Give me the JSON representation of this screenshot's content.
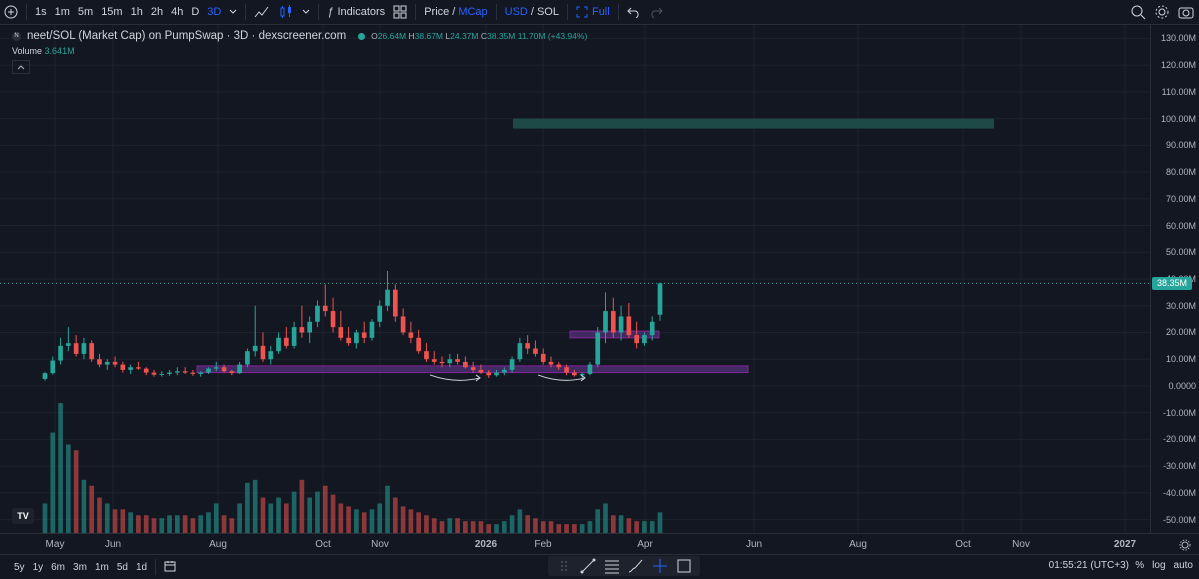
{
  "toolbar": {
    "intervals": [
      "1s",
      "1m",
      "5m",
      "15m",
      "1h",
      "2h",
      "4h",
      "D",
      "3D"
    ],
    "active_interval": "3D",
    "indicators_label": "Indicators",
    "price_label": "Price",
    "slash": "/",
    "mcap_label": "MCap",
    "usd_label": "USD",
    "sol_label": "SOL",
    "full_label": "Full"
  },
  "legend": {
    "title": "neet/SOL (Market Cap) on PumpSwap · 3D · dexscreener.com",
    "o_key": "O",
    "o_val": "26.64M",
    "h_key": "H",
    "h_val": "38.67M",
    "l_key": "L",
    "l_val": "24.37M",
    "c_key": "C",
    "c_val": "38.35M",
    "change": "11.70M (+43.94%)",
    "volume_label": "Volume",
    "volume_value": "3.641M"
  },
  "price_tag": "38.35M",
  "price_axis": [
    "130.00M",
    "120.00M",
    "110.00M",
    "100.00M",
    "90.00M",
    "80.00M",
    "70.00M",
    "60.00M",
    "50.00M",
    "40.00M",
    "30.00M",
    "20.00M",
    "10.00M",
    "0.0000",
    "-10.00M",
    "-20.00M",
    "-30.00M",
    "-40.00M",
    "-50.00M"
  ],
  "time_axis": [
    "May",
    "Jun",
    "Aug",
    "Oct",
    "Nov",
    "2026",
    "Feb",
    "Apr",
    "Jun",
    "Aug",
    "Oct",
    "Nov",
    "2027"
  ],
  "bottom": {
    "ranges": [
      "5y",
      "1y",
      "6m",
      "3m",
      "1m",
      "5d",
      "1d"
    ],
    "clock": "01:55:21 (UTC+3)",
    "pct": "%",
    "log": "log",
    "auto": "auto"
  },
  "colors": {
    "up": "#26a69a",
    "down": "#ef5350",
    "accent": "#2962ff",
    "zone": "#7e57c2"
  },
  "chart_data": {
    "type": "candlestick",
    "ylim": [
      -55,
      135
    ],
    "unit": "M",
    "candles": [
      [
        2.6,
        5.2,
        2.0,
        4.8
      ],
      [
        4.8,
        11,
        4.2,
        9.5
      ],
      [
        9.5,
        18,
        8,
        15
      ],
      [
        15,
        22,
        13,
        16
      ],
      [
        16,
        19,
        11,
        12
      ],
      [
        12,
        18,
        10,
        16
      ],
      [
        16,
        17,
        9,
        10
      ],
      [
        10,
        12,
        7,
        8
      ],
      [
        8,
        10,
        6,
        9
      ],
      [
        9,
        11,
        7,
        8
      ],
      [
        8,
        9,
        5,
        6
      ],
      [
        6,
        8,
        4.5,
        7
      ],
      [
        7,
        9,
        6,
        6.5
      ],
      [
        6.5,
        7,
        4,
        5
      ],
      [
        5,
        6,
        3.5,
        4.2
      ],
      [
        4.2,
        5.5,
        3.5,
        4.5
      ],
      [
        4.5,
        6,
        3.8,
        5
      ],
      [
        5,
        7,
        4,
        5.5
      ],
      [
        5.5,
        7,
        4.5,
        5
      ],
      [
        5,
        6,
        3.8,
        4.5
      ],
      [
        4.5,
        5.5,
        3.5,
        5
      ],
      [
        5,
        7,
        4.5,
        6.5
      ],
      [
        6.5,
        9,
        5.5,
        7
      ],
      [
        7,
        8,
        5,
        5.5
      ],
      [
        5.5,
        6,
        4,
        4.8
      ],
      [
        4.8,
        9,
        4.5,
        8
      ],
      [
        8,
        14,
        7,
        13
      ],
      [
        13,
        30,
        11,
        15
      ],
      [
        15,
        20,
        9,
        10
      ],
      [
        10,
        15,
        8,
        13
      ],
      [
        13,
        20,
        12,
        18
      ],
      [
        18,
        22,
        14,
        15
      ],
      [
        15,
        24,
        14,
        22
      ],
      [
        22,
        30,
        18,
        20
      ],
      [
        20,
        26,
        16,
        24
      ],
      [
        24,
        32,
        22,
        30
      ],
      [
        30,
        38,
        26,
        28
      ],
      [
        28,
        33,
        20,
        22
      ],
      [
        22,
        28,
        17,
        18
      ],
      [
        18,
        22,
        15,
        16
      ],
      [
        16,
        21,
        14,
        20
      ],
      [
        20,
        24,
        16,
        18
      ],
      [
        18,
        25,
        17,
        24
      ],
      [
        24,
        32,
        22,
        30
      ],
      [
        30,
        43,
        28,
        36
      ],
      [
        36,
        38,
        24,
        26
      ],
      [
        26,
        29,
        19,
        20
      ],
      [
        20,
        24,
        16,
        18
      ],
      [
        18,
        21,
        12,
        13
      ],
      [
        13,
        16,
        9,
        10
      ],
      [
        10,
        13,
        8,
        9
      ],
      [
        9,
        11,
        7,
        8.5
      ],
      [
        8.5,
        12,
        7,
        10
      ],
      [
        10,
        12,
        8,
        9
      ],
      [
        9,
        11,
        6.5,
        7
      ],
      [
        7,
        9,
        5,
        6
      ],
      [
        6,
        8,
        4.5,
        5
      ],
      [
        5,
        6,
        3,
        4
      ],
      [
        4,
        6,
        3.5,
        5
      ],
      [
        5,
        7,
        4,
        6
      ],
      [
        6,
        11,
        5,
        10
      ],
      [
        10,
        18,
        9,
        16
      ],
      [
        16,
        19,
        12,
        14
      ],
      [
        14,
        17,
        11,
        12
      ],
      [
        12,
        14,
        8,
        9
      ],
      [
        9,
        11,
        7,
        8
      ],
      [
        8,
        9,
        6,
        7
      ],
      [
        7,
        8,
        4,
        5
      ],
      [
        5,
        6,
        3.5,
        4
      ],
      [
        4,
        5,
        3,
        4.5
      ],
      [
        4.5,
        9,
        4,
        8
      ],
      [
        8,
        22,
        7,
        20
      ],
      [
        20,
        35,
        16,
        28
      ],
      [
        28,
        33,
        18,
        20
      ],
      [
        20,
        30,
        17,
        26
      ],
      [
        26,
        31,
        18,
        19
      ],
      [
        19,
        24,
        14,
        16
      ],
      [
        16,
        20,
        15,
        19
      ],
      [
        19,
        26,
        17,
        24
      ],
      [
        26.64,
        38.67,
        24.37,
        38.35
      ]
    ],
    "volume": [
      10,
      34,
      44,
      30,
      28,
      18,
      16,
      12,
      10,
      8,
      8,
      7,
      6,
      6,
      5,
      5,
      6,
      6,
      6,
      5,
      6,
      7,
      10,
      6,
      5,
      10,
      17,
      18,
      12,
      10,
      12,
      10,
      14,
      18,
      12,
      14,
      16,
      13,
      10,
      9,
      8,
      7,
      8,
      10,
      16,
      12,
      9,
      8,
      7,
      6,
      5,
      4,
      5,
      5,
      4,
      4,
      4,
      3,
      3,
      4,
      6,
      8,
      6,
      5,
      4,
      4,
      3,
      3,
      3,
      3,
      4,
      8,
      10,
      6,
      6,
      5,
      4,
      4,
      4,
      7
    ],
    "zones": [
      {
        "y1": 100,
        "y2": 98.5
      },
      {
        "y1": 7.5,
        "y2": 5
      },
      {
        "y1": 20.5,
        "y2": 18
      }
    ]
  }
}
